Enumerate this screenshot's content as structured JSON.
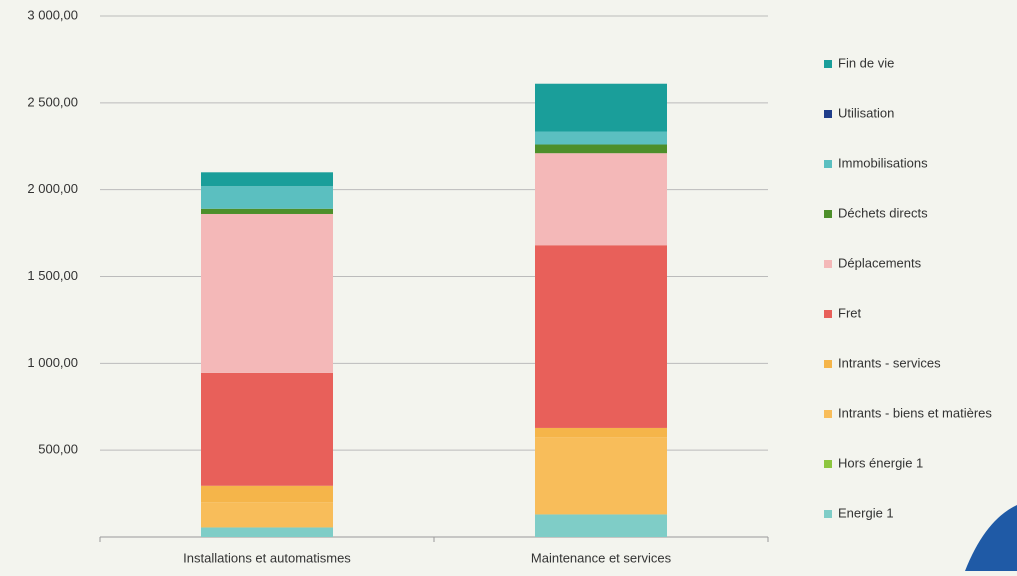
{
  "chart_data": {
    "type": "stacked_bar",
    "categories": [
      "Installations et automatismes",
      "Maintenance et services"
    ],
    "series": [
      {
        "name": "Energie 1",
        "color": "#7fcdc7",
        "values": [
          55,
          130
        ]
      },
      {
        "name": "Hors énergie 1",
        "color": "#8dc63f",
        "values": [
          0,
          0
        ]
      },
      {
        "name": "Intrants - biens et matières",
        "color": "#f8bd5a",
        "values": [
          145,
          445
        ]
      },
      {
        "name": "Intrants - services",
        "color": "#f5b54a",
        "values": [
          95,
          53
        ]
      },
      {
        "name": "Fret",
        "color": "#e8605a",
        "values": [
          650,
          1052
        ]
      },
      {
        "name": "Déplacements",
        "color": "#f4b8b8",
        "values": [
          915,
          530
        ]
      },
      {
        "name": "Déchets directs",
        "color": "#4d8f2a",
        "values": [
          30,
          50
        ]
      },
      {
        "name": "Immobilisations",
        "color": "#5bbfc0",
        "values": [
          130,
          75
        ]
      },
      {
        "name": "Utilisation",
        "color": "#1f3d8a",
        "values": [
          0,
          0
        ]
      },
      {
        "name": "Fin de vie",
        "color": "#1a9e9a",
        "values": [
          80,
          275
        ]
      }
    ],
    "ylim": [
      0,
      3000
    ],
    "yticks": [
      {
        "value": 500,
        "label": "500,00"
      },
      {
        "value": 1000,
        "label": "1 000,00"
      },
      {
        "value": 1500,
        "label": "1 500,00"
      },
      {
        "value": 2000,
        "label": "2 000,00"
      },
      {
        "value": 2500,
        "label": "2 500,00"
      },
      {
        "value": 3000,
        "label": "3 000,00"
      }
    ],
    "grid": true,
    "legend": "right"
  }
}
